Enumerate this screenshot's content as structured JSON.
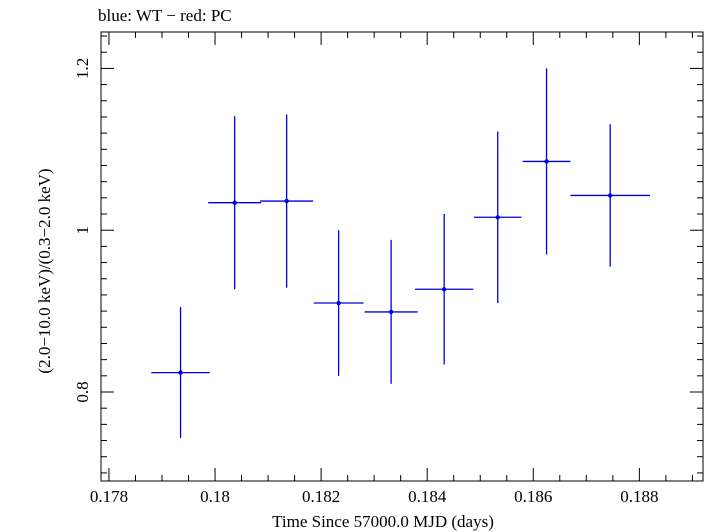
{
  "chart_data": {
    "type": "scatter",
    "title": "blue: WT − red: PC",
    "xlabel": "Time Since 57000.0 MJD (days)",
    "ylabel": "(2.0−10.0 keV)/(0.3−2.0 keV)",
    "xlim": [
      0.17785,
      0.1892
    ],
    "ylim": [
      0.69,
      1.245
    ],
    "x_ticks_major": [
      0.178,
      0.18,
      0.182,
      0.184,
      0.186,
      0.188
    ],
    "x_tick_labels": [
      "0.178",
      "0.18",
      "0.182",
      "0.184",
      "0.186",
      "0.188"
    ],
    "y_ticks_major": [
      0.8,
      1.0,
      1.2
    ],
    "y_tick_labels": [
      "0.8",
      "1",
      "1.2"
    ],
    "grid": false,
    "series": [
      {
        "name": "WT",
        "color": "#0000dd",
        "points": [
          {
            "x": 0.17935,
            "xerr": 0.00055,
            "y": 0.824,
            "yerr_low": 0.081,
            "yerr_high": 0.081
          },
          {
            "x": 0.18037,
            "xerr": 0.0005,
            "y": 1.034,
            "yerr_low": 0.107,
            "yerr_high": 0.107
          },
          {
            "x": 0.18135,
            "xerr": 0.0005,
            "y": 1.036,
            "yerr_low": 0.107,
            "yerr_high": 0.107
          },
          {
            "x": 0.18233,
            "xerr": 0.00047,
            "y": 0.91,
            "yerr_low": 0.09,
            "yerr_high": 0.09
          },
          {
            "x": 0.18332,
            "xerr": 0.0005,
            "y": 0.899,
            "yerr_low": 0.089,
            "yerr_high": 0.089
          },
          {
            "x": 0.18432,
            "xerr": 0.00055,
            "y": 0.927,
            "yerr_low": 0.093,
            "yerr_high": 0.093
          },
          {
            "x": 0.18533,
            "xerr": 0.00045,
            "y": 1.016,
            "yerr_low": 0.106,
            "yerr_high": 0.106
          },
          {
            "x": 0.18625,
            "xerr": 0.00045,
            "y": 1.085,
            "yerr_low": 0.115,
            "yerr_high": 0.115
          },
          {
            "x": 0.18745,
            "xerr": 0.00075,
            "y": 1.043,
            "yerr_low": 0.088,
            "yerr_high": 0.088
          }
        ]
      }
    ]
  }
}
